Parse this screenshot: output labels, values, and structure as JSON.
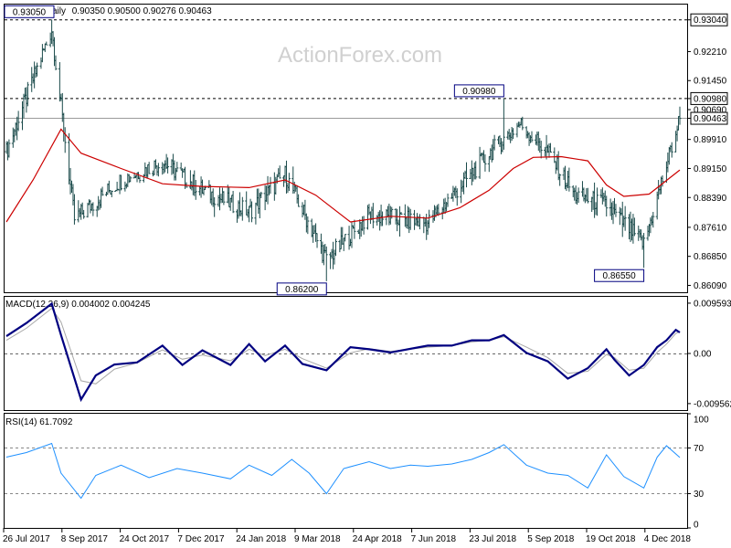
{
  "header": {
    "title": "EURGBP,Daily",
    "ohlc": "0.90350 0.90500 0.90276 0.90463"
  },
  "watermark": "ActionForex.com",
  "colors": {
    "price_bars": "#1a4a4a",
    "moving_average": "#cc0000",
    "macd_line": "#000080",
    "macd_signal": "#a8a8a8",
    "rsi_line": "#1e90ff",
    "level_box_border": "#000080"
  },
  "chart_data": [
    {
      "type": "ohlc",
      "panel": "price",
      "title": "EURGBP,Daily",
      "ylim": [
        0.8591,
        0.9344
      ],
      "y_ticks": [
        "0.93040",
        "0.92210",
        "0.91450",
        "0.90980",
        "0.90690",
        "0.90463",
        "0.89910",
        "0.89150",
        "0.88390",
        "0.87610",
        "0.86850",
        "0.86090"
      ],
      "x_ticks": [
        "26 Jul 2017",
        "8 Sep 2017",
        "24 Oct 2017",
        "7 Dec 2017",
        "24 Jan 2018",
        "9 Mar 2018",
        "24 Apr 2018",
        "7 Jun 2018",
        "23 Jul 2018",
        "5 Sep 2018",
        "19 Oct 2018",
        "4 Dec 2018"
      ],
      "reference_lines": [
        {
          "value": 0.9304,
          "label": "0.93040",
          "style": "dashed"
        },
        {
          "value": 0.9098,
          "label": "0.90980",
          "style": "dashed"
        },
        {
          "value": 0.90463,
          "label": "0.90463",
          "style": "solid"
        }
      ],
      "annotations": [
        {
          "date": "2017-08-29",
          "value": 0.9305,
          "label": "0.93050"
        },
        {
          "date": "2018-03-23",
          "value": 0.862,
          "label": "0.86200"
        },
        {
          "date": "2018-08-03",
          "value": 0.9098,
          "label": "0.90980"
        },
        {
          "date": "2018-11-16",
          "value": 0.8655,
          "label": "0.86550"
        }
      ],
      "series": [
        {
          "type": "line",
          "x": [
            "2017-07-26",
            "2017-08-29",
            "2017-09-15",
            "2017-10-20",
            "2017-11-20",
            "2017-12-20",
            "2018-01-24",
            "2018-02-20",
            "2018-03-23",
            "2018-04-24",
            "2018-06-07",
            "2018-07-23",
            "2018-08-15",
            "2018-09-05",
            "2018-09-25",
            "2018-10-19",
            "2018-11-16",
            "2018-12-13"
          ],
          "close": [
            0.8959,
            0.928,
            0.8782,
            0.8885,
            0.8932,
            0.8858,
            0.8801,
            0.89,
            0.8675,
            0.8793,
            0.8772,
            0.8954,
            0.9032,
            0.8958,
            0.8846,
            0.8819,
            0.8716,
            0.90463
          ]
        },
        {
          "type": "line",
          "x": [
            "2017-07-26",
            "2017-08-15",
            "2017-09-05",
            "2017-09-20",
            "2017-10-20",
            "2017-11-20",
            "2017-12-20",
            "2018-01-24",
            "2018-02-20",
            "2018-03-15",
            "2018-04-10",
            "2018-05-10",
            "2018-06-07",
            "2018-07-01",
            "2018-07-23",
            "2018-08-10",
            "2018-08-25",
            "2018-09-15",
            "2018-10-05",
            "2018-10-19",
            "2018-11-01",
            "2018-11-20",
            "2018-12-13"
          ],
          "ma": [
            0.8775,
            0.8885,
            0.9018,
            0.8955,
            0.8915,
            0.8875,
            0.8868,
            0.8865,
            0.8885,
            0.8845,
            0.8775,
            0.879,
            0.8785,
            0.8812,
            0.8858,
            0.8915,
            0.8944,
            0.8946,
            0.8935,
            0.8872,
            0.8842,
            0.8848,
            0.8911
          ]
        }
      ]
    },
    {
      "type": "line",
      "panel": "macd",
      "title": "MACD(12,26,9) 0.004002 0.004245",
      "ylim": [
        -0.0108,
        0.0108
      ],
      "y_ticks": [
        "0.009593",
        "0.00",
        "-0.009562"
      ],
      "series": [
        {
          "name": "MACD",
          "x": [
            "2017-07-26",
            "2017-08-10",
            "2017-08-29",
            "2017-09-05",
            "2017-09-20",
            "2017-10-01",
            "2017-10-15",
            "2017-11-01",
            "2017-11-20",
            "2017-12-05",
            "2017-12-20",
            "2018-01-10",
            "2018-01-24",
            "2018-02-05",
            "2018-02-20",
            "2018-03-05",
            "2018-03-23",
            "2018-04-10",
            "2018-04-24",
            "2018-05-10",
            "2018-06-07",
            "2018-06-25",
            "2018-07-10",
            "2018-07-23",
            "2018-08-03",
            "2018-08-20",
            "2018-09-05",
            "2018-09-20",
            "2018-10-05",
            "2018-10-19",
            "2018-10-25",
            "2018-11-05",
            "2018-11-16",
            "2018-11-26",
            "2018-12-03",
            "2018-12-10",
            "2018-12-13"
          ],
          "values": [
            0.0033,
            0.0058,
            0.0095,
            0.0035,
            -0.0088,
            -0.0042,
            -0.0021,
            -0.0017,
            0.0015,
            -0.0022,
            0.0006,
            -0.0022,
            0.0018,
            -0.0015,
            0.0015,
            -0.002,
            -0.0032,
            0.0012,
            0.0008,
            0.0002,
            0.0015,
            0.0015,
            0.0025,
            0.0025,
            0.0035,
            0.0001,
            -0.0015,
            -0.0048,
            -0.0028,
            0.0008,
            -0.0012,
            -0.0042,
            -0.0022,
            0.0012,
            0.0025,
            0.0045,
            0.004
          ]
        },
        {
          "name": "Signal",
          "x": [
            "2017-07-26",
            "2017-08-10",
            "2017-08-29",
            "2017-09-05",
            "2017-09-20",
            "2017-10-01",
            "2017-10-15",
            "2017-11-01",
            "2017-11-20",
            "2017-12-05",
            "2017-12-20",
            "2018-01-10",
            "2018-01-24",
            "2018-02-05",
            "2018-02-20",
            "2018-03-05",
            "2018-03-23",
            "2018-04-10",
            "2018-04-24",
            "2018-05-10",
            "2018-06-07",
            "2018-06-25",
            "2018-07-10",
            "2018-07-23",
            "2018-08-03",
            "2018-08-20",
            "2018-09-05",
            "2018-09-20",
            "2018-10-05",
            "2018-10-19",
            "2018-10-25",
            "2018-11-05",
            "2018-11-16",
            "2018-11-26",
            "2018-12-03",
            "2018-12-10",
            "2018-12-13"
          ],
          "values": [
            0.0025,
            0.0048,
            0.0086,
            0.006,
            -0.0052,
            -0.0058,
            -0.003,
            -0.0018,
            0.0007,
            -0.0011,
            -0.0003,
            -0.0014,
            0.0008,
            -0.0004,
            0.0008,
            -0.001,
            -0.0028,
            0.0001,
            0.0009,
            0.0004,
            0.0012,
            0.0015,
            0.0022,
            0.0025,
            0.0032,
            0.0012,
            -0.0008,
            -0.0038,
            -0.0034,
            -0.0002,
            -0.0008,
            -0.0032,
            -0.0028,
            0.0002,
            0.0018,
            0.0038,
            0.0042
          ]
        }
      ]
    },
    {
      "type": "line",
      "panel": "rsi",
      "title": "RSI(14) 61.7092",
      "ylim": [
        0,
        100
      ],
      "y_ticks": [
        "100",
        "70",
        "30",
        "0"
      ],
      "reference_lines": [
        {
          "value": 70,
          "style": "dashed"
        },
        {
          "value": 30,
          "style": "dashed"
        }
      ],
      "series": [
        {
          "name": "RSI",
          "x": [
            "2017-07-26",
            "2017-08-10",
            "2017-08-29",
            "2017-09-05",
            "2017-09-20",
            "2017-10-01",
            "2017-10-20",
            "2017-11-10",
            "2017-12-01",
            "2017-12-20",
            "2018-01-10",
            "2018-01-24",
            "2018-02-10",
            "2018-02-25",
            "2018-03-10",
            "2018-03-23",
            "2018-04-05",
            "2018-04-24",
            "2018-05-10",
            "2018-05-25",
            "2018-06-07",
            "2018-06-25",
            "2018-07-10",
            "2018-07-23",
            "2018-08-03",
            "2018-08-20",
            "2018-09-05",
            "2018-09-20",
            "2018-10-05",
            "2018-10-19",
            "2018-11-01",
            "2018-11-16",
            "2018-11-26",
            "2018-12-03",
            "2018-12-13"
          ],
          "values": [
            62,
            66,
            74,
            48,
            26,
            46,
            55,
            44,
            52,
            48,
            43,
            55,
            46,
            60,
            48,
            30,
            52,
            58,
            52,
            55,
            54,
            56,
            60,
            66,
            73,
            55,
            48,
            46,
            35,
            64,
            45,
            35,
            62,
            72,
            61.7
          ]
        }
      ]
    }
  ]
}
